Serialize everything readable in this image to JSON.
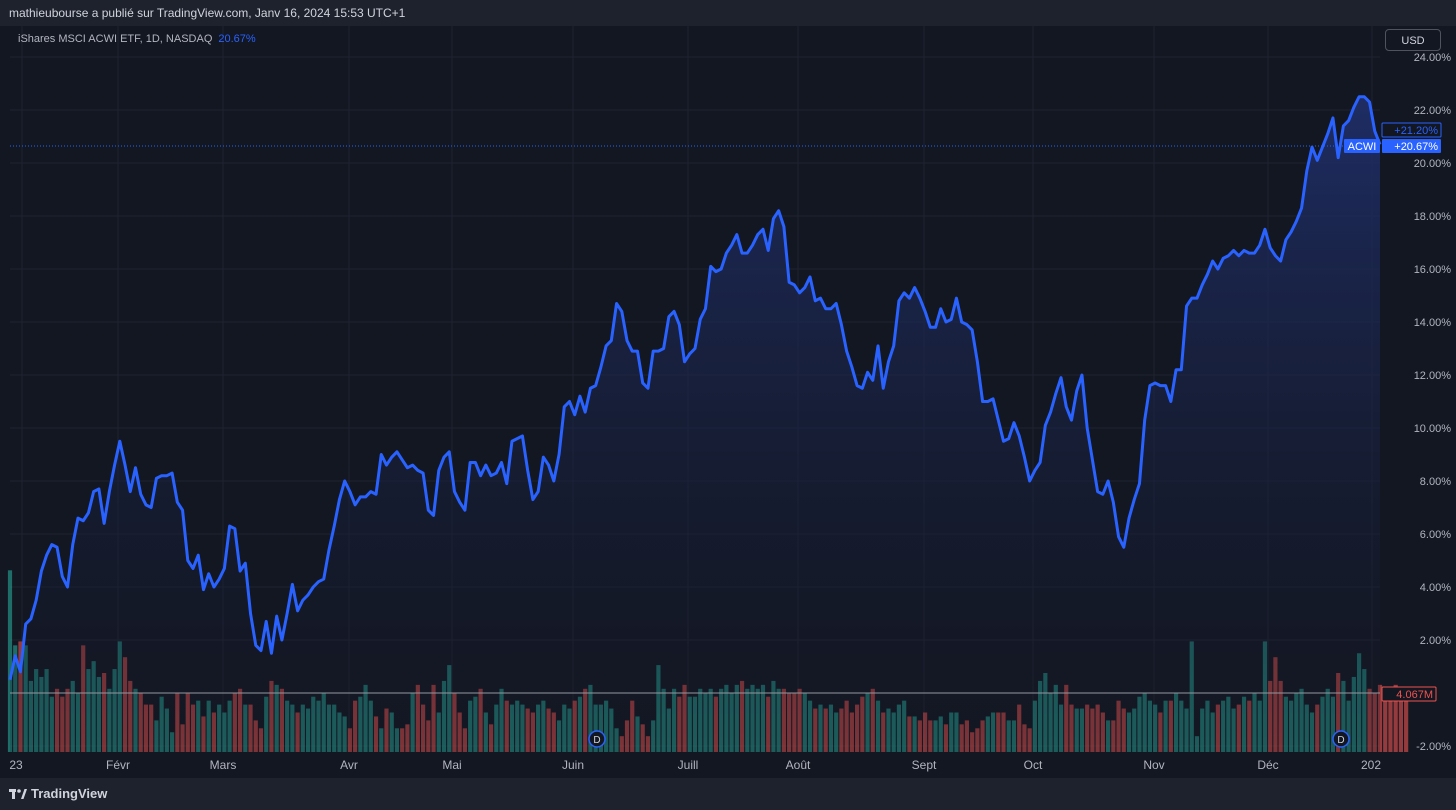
{
  "header": {
    "published": "mathieubourse a publié sur TradingView.com, Janv 16, 2024 15:53 UTC+1",
    "symbol": "iShares MSCI ACWI ETF, 1D, NASDAQ",
    "symbol_change": "20.67%",
    "currency_button": "USD"
  },
  "footer": {
    "logo_text": "TradingView"
  },
  "colors": {
    "line": "#2962ff",
    "area_top": "#1f2f6b",
    "vol_up": "#26a69a",
    "vol_down": "#ef5350",
    "background": "#131722",
    "grid": "#1f2330"
  },
  "badges": {
    "upper": "+21.20%",
    "symbol_tag": "ACWI",
    "current": "+20.67%",
    "volume": "4.067M",
    "dividend": "D"
  },
  "chart_data": {
    "type": "area",
    "ylabel": "",
    "y_unit": "%",
    "ylim": [
      -2.0,
      24.0
    ],
    "y_ticks": [
      "24.00%",
      "22.00%",
      "20.00%",
      "18.00%",
      "16.00%",
      "14.00%",
      "12.00%",
      "10.00%",
      "8.00%",
      "6.00%",
      "4.00%",
      "2.00%",
      "-2.00%"
    ],
    "x_ticks": [
      "23",
      "Févr",
      "Mars",
      "Avr",
      "Mai",
      "Juin",
      "Juill",
      "Août",
      "Sept",
      "Oct",
      "Nov",
      "Déc",
      "202"
    ],
    "series": [
      {
        "values": [
          0.5,
          1.4,
          0.8,
          2.6,
          2.8,
          3.5,
          4.6,
          5.2,
          5.6,
          5.5,
          4.4,
          4.0,
          5.6,
          6.6,
          6.5,
          6.8,
          7.6,
          7.7,
          6.4,
          7.6,
          8.6,
          9.5,
          8.6,
          7.6,
          8.5,
          7.5,
          7.1,
          7.0,
          8.1,
          8.2,
          8.2,
          8.3,
          7.2,
          6.9,
          5.0,
          4.7,
          5.2,
          3.9,
          4.5,
          4.0,
          4.3,
          4.7,
          6.3,
          6.2,
          4.6,
          4.9,
          3.0,
          1.8,
          1.6,
          2.7,
          1.5,
          2.9,
          2.0,
          3.0,
          4.1,
          3.1,
          3.5,
          3.7,
          4.0,
          4.2,
          4.3,
          5.4,
          6.3,
          7.3,
          8.0,
          7.6,
          7.1,
          7.4,
          7.4,
          7.6,
          7.5,
          9.0,
          8.6,
          8.9,
          9.1,
          8.8,
          8.5,
          8.6,
          8.4,
          8.3,
          6.9,
          6.7,
          8.4,
          8.9,
          9.1,
          7.6,
          7.2,
          6.9,
          8.7,
          8.7,
          8.2,
          8.6,
          8.2,
          8.3,
          8.7,
          7.9,
          9.5,
          9.6,
          9.7,
          8.4,
          7.3,
          7.6,
          8.9,
          8.6,
          8.0,
          9.0,
          10.8,
          11.0,
          10.5,
          11.2,
          10.6,
          11.5,
          11.6,
          12.3,
          13.1,
          13.3,
          14.7,
          14.4,
          13.3,
          12.9,
          12.9,
          11.7,
          11.5,
          12.9,
          12.9,
          13.0,
          14.2,
          14.4,
          13.9,
          12.5,
          12.8,
          13.0,
          14.1,
          14.5,
          16.1,
          15.9,
          16.0,
          16.6,
          16.9,
          17.3,
          16.6,
          16.6,
          16.9,
          17.3,
          17.5,
          16.7,
          17.9,
          18.2,
          17.6,
          15.5,
          15.4,
          15.1,
          15.3,
          15.7,
          14.8,
          14.9,
          14.5,
          14.5,
          14.7,
          13.9,
          12.9,
          12.3,
          11.6,
          11.5,
          12.1,
          11.8,
          13.1,
          11.5,
          12.5,
          13.1,
          14.8,
          15.1,
          14.9,
          15.3,
          14.9,
          14.4,
          13.8,
          13.8,
          14.5,
          14.0,
          14.1,
          14.9,
          14.0,
          13.9,
          13.7,
          12.5,
          11.0,
          11.0,
          11.1,
          10.3,
          9.5,
          9.6,
          10.2,
          9.7,
          8.9,
          8.0,
          8.4,
          8.7,
          10.1,
          10.6,
          11.3,
          11.9,
          10.8,
          10.3,
          11.4,
          12.0,
          10.0,
          8.8,
          7.6,
          7.5,
          8.0,
          7.2,
          5.9,
          5.5,
          6.6,
          7.3,
          7.9,
          10.3,
          11.6,
          11.7,
          11.6,
          11.6,
          11.0,
          12.2,
          12.2,
          14.6,
          14.9,
          14.9,
          15.4,
          15.8,
          16.3,
          16.0,
          16.4,
          16.5,
          16.7,
          16.5,
          16.7,
          16.6,
          16.6,
          16.9,
          17.5,
          16.8,
          16.5,
          16.3,
          17.1,
          17.4,
          17.8,
          18.3,
          19.7,
          20.6,
          20.1,
          20.6,
          21.1,
          21.7,
          20.2,
          21.4,
          21.6,
          22.1,
          22.5,
          22.5,
          22.3,
          21.2,
          20.7
        ]
      }
    ],
    "volume": {
      "values": [
        4.6,
        2.7,
        2.8,
        2.7,
        1.8,
        2.1,
        1.9,
        2.1,
        1.4,
        1.6,
        1.4,
        1.6,
        1.8,
        1.5,
        2.7,
        2.1,
        2.3,
        1.9,
        2.0,
        1.6,
        2.1,
        2.8,
        2.4,
        1.8,
        1.6,
        1.5,
        1.2,
        1.2,
        0.8,
        1.4,
        1.1,
        0.5,
        1.5,
        0.7,
        1.5,
        1.2,
        1.3,
        0.9,
        1.3,
        1.0,
        1.2,
        1.0,
        1.3,
        1.5,
        1.6,
        1.2,
        1.2,
        0.8,
        0.6,
        1.4,
        1.8,
        1.7,
        1.6,
        1.3,
        1.2,
        1.0,
        1.2,
        1.1,
        1.4,
        1.3,
        1.5,
        1.2,
        1.2,
        1.0,
        0.9,
        0.6,
        1.3,
        1.4,
        1.7,
        1.3,
        0.9,
        0.6,
        1.1,
        1.0,
        0.6,
        0.6,
        0.7,
        1.5,
        1.7,
        1.2,
        0.8,
        1.7,
        1.0,
        1.8,
        2.2,
        1.5,
        1.0,
        0.6,
        1.3,
        1.4,
        1.6,
        1.0,
        0.7,
        1.2,
        1.6,
        1.3,
        1.2,
        1.3,
        1.2,
        1.1,
        1.0,
        1.2,
        1.3,
        1.1,
        1.0,
        0.8,
        1.2,
        1.1,
        1.3,
        1.4,
        1.6,
        1.7,
        1.2,
        1.2,
        1.3,
        1.1,
        0.6,
        0.4,
        0.8,
        1.3,
        0.9,
        0.7,
        0.4,
        0.8,
        2.2,
        1.6,
        1.1,
        1.6,
        1.4,
        1.7,
        1.4,
        1.4,
        1.6,
        1.5,
        1.6,
        1.4,
        1.6,
        1.7,
        1.5,
        1.7,
        1.8,
        1.6,
        1.7,
        1.6,
        1.7,
        1.4,
        1.8,
        1.6,
        1.6,
        1.5,
        1.5,
        1.6,
        1.5,
        1.3,
        1.1,
        1.2,
        1.1,
        1.2,
        1.0,
        1.1,
        1.3,
        1.0,
        1.2,
        1.4,
        1.5,
        1.6,
        1.3,
        1.0,
        1.1,
        1.0,
        1.2,
        1.3,
        0.9,
        0.9,
        0.8,
        1.0,
        0.8,
        0.8,
        0.9,
        0.7,
        1.0,
        1.0,
        0.7,
        0.8,
        0.5,
        0.6,
        0.8,
        0.9,
        1.0,
        1.0,
        1.0,
        0.8,
        0.8,
        1.2,
        0.7,
        0.6,
        1.3,
        1.8,
        2.0,
        1.5,
        1.7,
        1.2,
        1.7,
        1.2,
        1.1,
        1.1,
        1.2,
        1.1,
        1.2,
        1.0,
        0.8,
        0.8,
        1.3,
        1.1,
        1.0,
        1.1,
        1.4,
        1.5,
        1.3,
        1.2,
        1.0,
        1.3,
        1.3,
        1.5,
        1.3,
        1.1,
        2.8,
        0.4,
        1.1,
        1.3,
        1.0,
        1.2,
        1.3,
        1.4,
        1.1,
        1.2,
        1.4,
        1.3,
        1.5,
        1.3,
        2.8,
        1.8,
        2.4,
        1.8,
        1.4,
        1.3,
        1.5,
        1.6,
        1.2,
        1.0,
        1.2,
        1.4,
        1.6,
        1.4,
        2.0,
        1.8,
        1.3,
        1.9,
        2.5,
        2.1,
        1.6,
        1.5,
        1.7,
        1.6,
        1.5,
        1.7,
        1.6,
        1.4
      ]
    }
  }
}
